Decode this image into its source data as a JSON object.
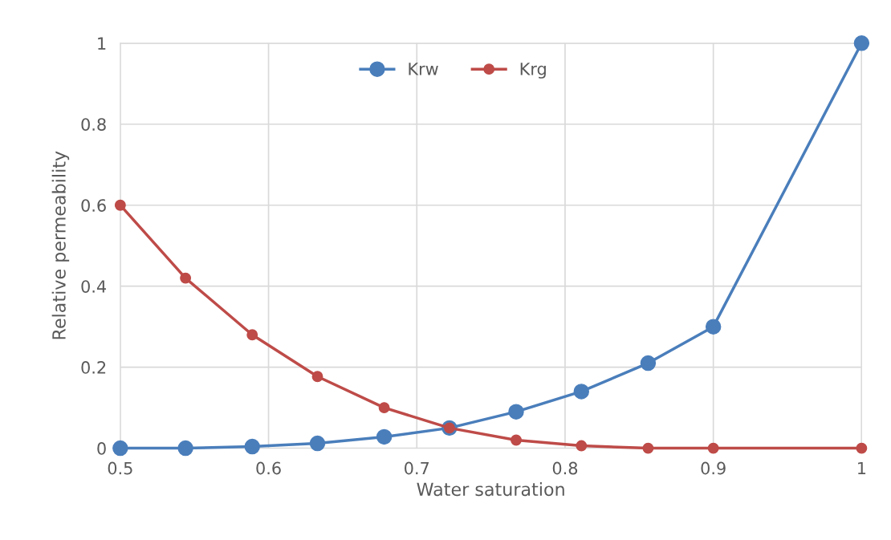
{
  "chart_data": {
    "type": "line",
    "xlabel": "Water saturation",
    "ylabel": "Relative permeability",
    "x": [
      0.5,
      0.544,
      0.589,
      0.633,
      0.678,
      0.722,
      0.767,
      0.811,
      0.856,
      0.9,
      1.0
    ],
    "series": [
      {
        "name": "Krw",
        "color": "#4a7ebb",
        "values": [
          0,
          0,
          0.004,
          0.012,
          0.028,
          0.05,
          0.09,
          0.14,
          0.21,
          0.3,
          1.0
        ]
      },
      {
        "name": "Krg",
        "color": "#be4b48",
        "values": [
          0.6,
          0.42,
          0.28,
          0.177,
          0.1,
          0.05,
          0.02,
          0.006,
          0,
          0,
          0
        ]
      }
    ],
    "xlim": [
      0.5,
      1
    ],
    "xticks": [
      0.5,
      0.6,
      0.7,
      0.8,
      0.9,
      1
    ],
    "ylim": [
      0,
      1
    ],
    "yticks": [
      0,
      0.2,
      0.4,
      0.6,
      0.8,
      1
    ],
    "grid": true,
    "legend": "top",
    "marker": "circle",
    "line_style": "solid"
  }
}
